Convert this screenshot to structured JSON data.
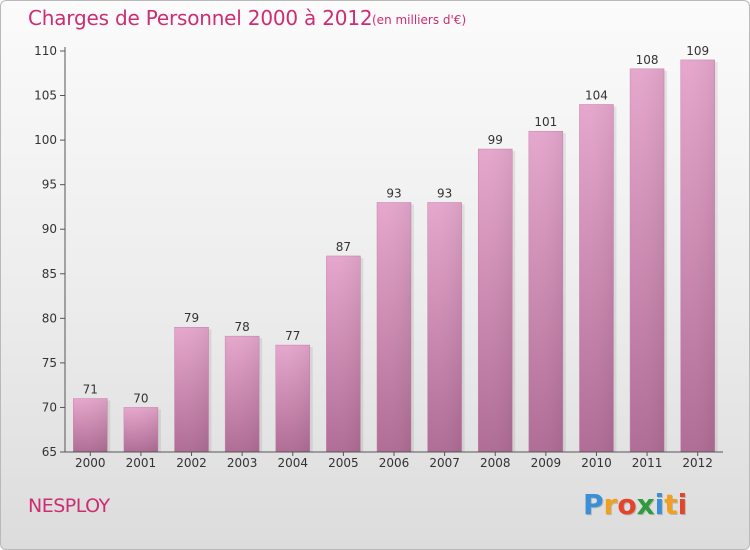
{
  "header": {
    "title": "Charges de Personnel 2000 à 2012",
    "subtitle": "(en milliers d'€)"
  },
  "footer": {
    "commune": "NESPLOY",
    "logo_text": "Proxiti",
    "logo_letters": [
      {
        "ch": "P",
        "color": "#3a8fd6"
      },
      {
        "ch": "r",
        "color": "#f0a01e"
      },
      {
        "ch": "o",
        "color": "#e2452b"
      },
      {
        "ch": "x",
        "color": "#2f9b3c"
      },
      {
        "ch": "i",
        "color": "#3a8fd6"
      },
      {
        "ch": "t",
        "color": "#f0a01e"
      },
      {
        "ch": "i",
        "color": "#e2452b"
      }
    ]
  },
  "chart_data": {
    "type": "bar",
    "title": "Charges de Personnel 2000 à 2012",
    "subtitle": "(en milliers d'€)",
    "categories": [
      "2000",
      "2001",
      "2002",
      "2003",
      "2004",
      "2005",
      "2006",
      "2007",
      "2008",
      "2009",
      "2010",
      "2011",
      "2012"
    ],
    "values": [
      71,
      70,
      79,
      78,
      77,
      87,
      93,
      93,
      99,
      101,
      104,
      108,
      109
    ],
    "ylim": [
      65,
      110
    ],
    "yticks": [
      65,
      70,
      75,
      80,
      85,
      90,
      95,
      100,
      105,
      110
    ],
    "xlabel": "",
    "ylabel": "",
    "bar_color": "#d98ab8",
    "grid": false,
    "legend": "none"
  }
}
